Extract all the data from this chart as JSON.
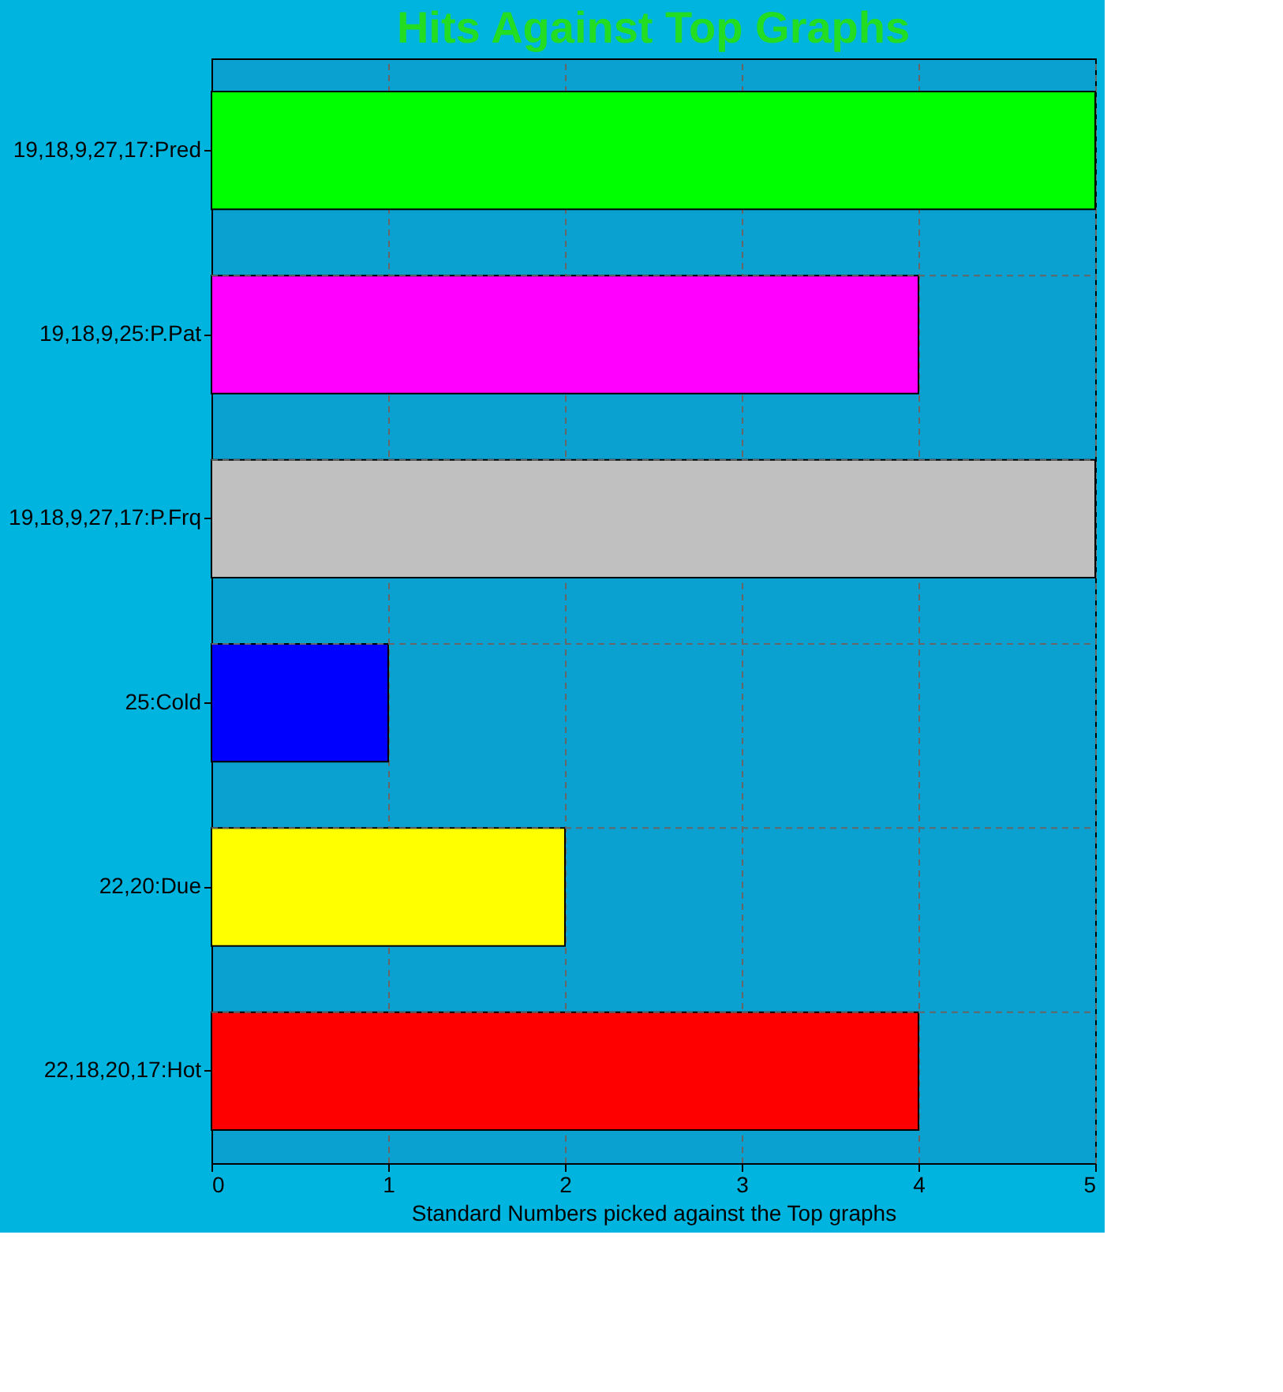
{
  "chart_data": {
    "type": "bar",
    "orientation": "horizontal",
    "title": "Hits Against Top Graphs",
    "xlabel": "Standard Numbers picked against the Top graphs",
    "categories": [
      "19,18,9,27,17:Pred",
      "19,18,9,25:P.Pat",
      "19,18,9,27,17:P.Frq",
      "25:Cold",
      "22,20:Due",
      "22,18,20,17:Hot"
    ],
    "values": [
      5,
      4,
      5,
      1,
      2,
      4
    ],
    "colors": [
      "#00ff00",
      "#ff00ff",
      "#c0c0c0",
      "#0000ff",
      "#ffff00",
      "#ff0000"
    ],
    "xlim": [
      0,
      5
    ],
    "xticks": [
      0,
      1,
      2,
      3,
      4,
      5
    ],
    "grid": true
  }
}
